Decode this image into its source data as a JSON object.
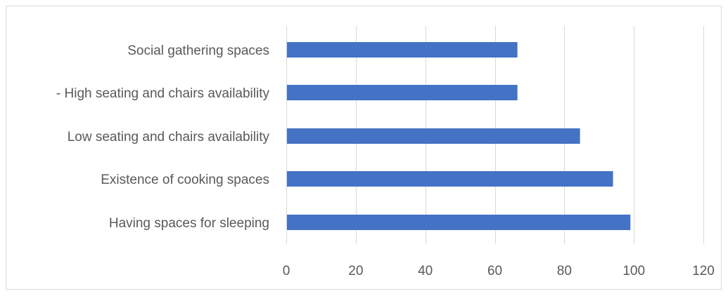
{
  "chart_data": {
    "type": "bar",
    "orientation": "horizontal",
    "categories": [
      "Social gathering spaces",
      "- High seating and chairs availability",
      "Low seating and chairs availability",
      "Existence of cooking spaces",
      "Having spaces for sleeping"
    ],
    "values": [
      66.5,
      66.5,
      84.5,
      94,
      99
    ],
    "xlim": [
      0,
      120
    ],
    "xticks": [
      0,
      20,
      40,
      60,
      80,
      100,
      120
    ],
    "grid": true,
    "legend": "none",
    "colors": {
      "bar": "#4472c4",
      "grid": "#d9d9d9",
      "text": "#595959"
    }
  }
}
